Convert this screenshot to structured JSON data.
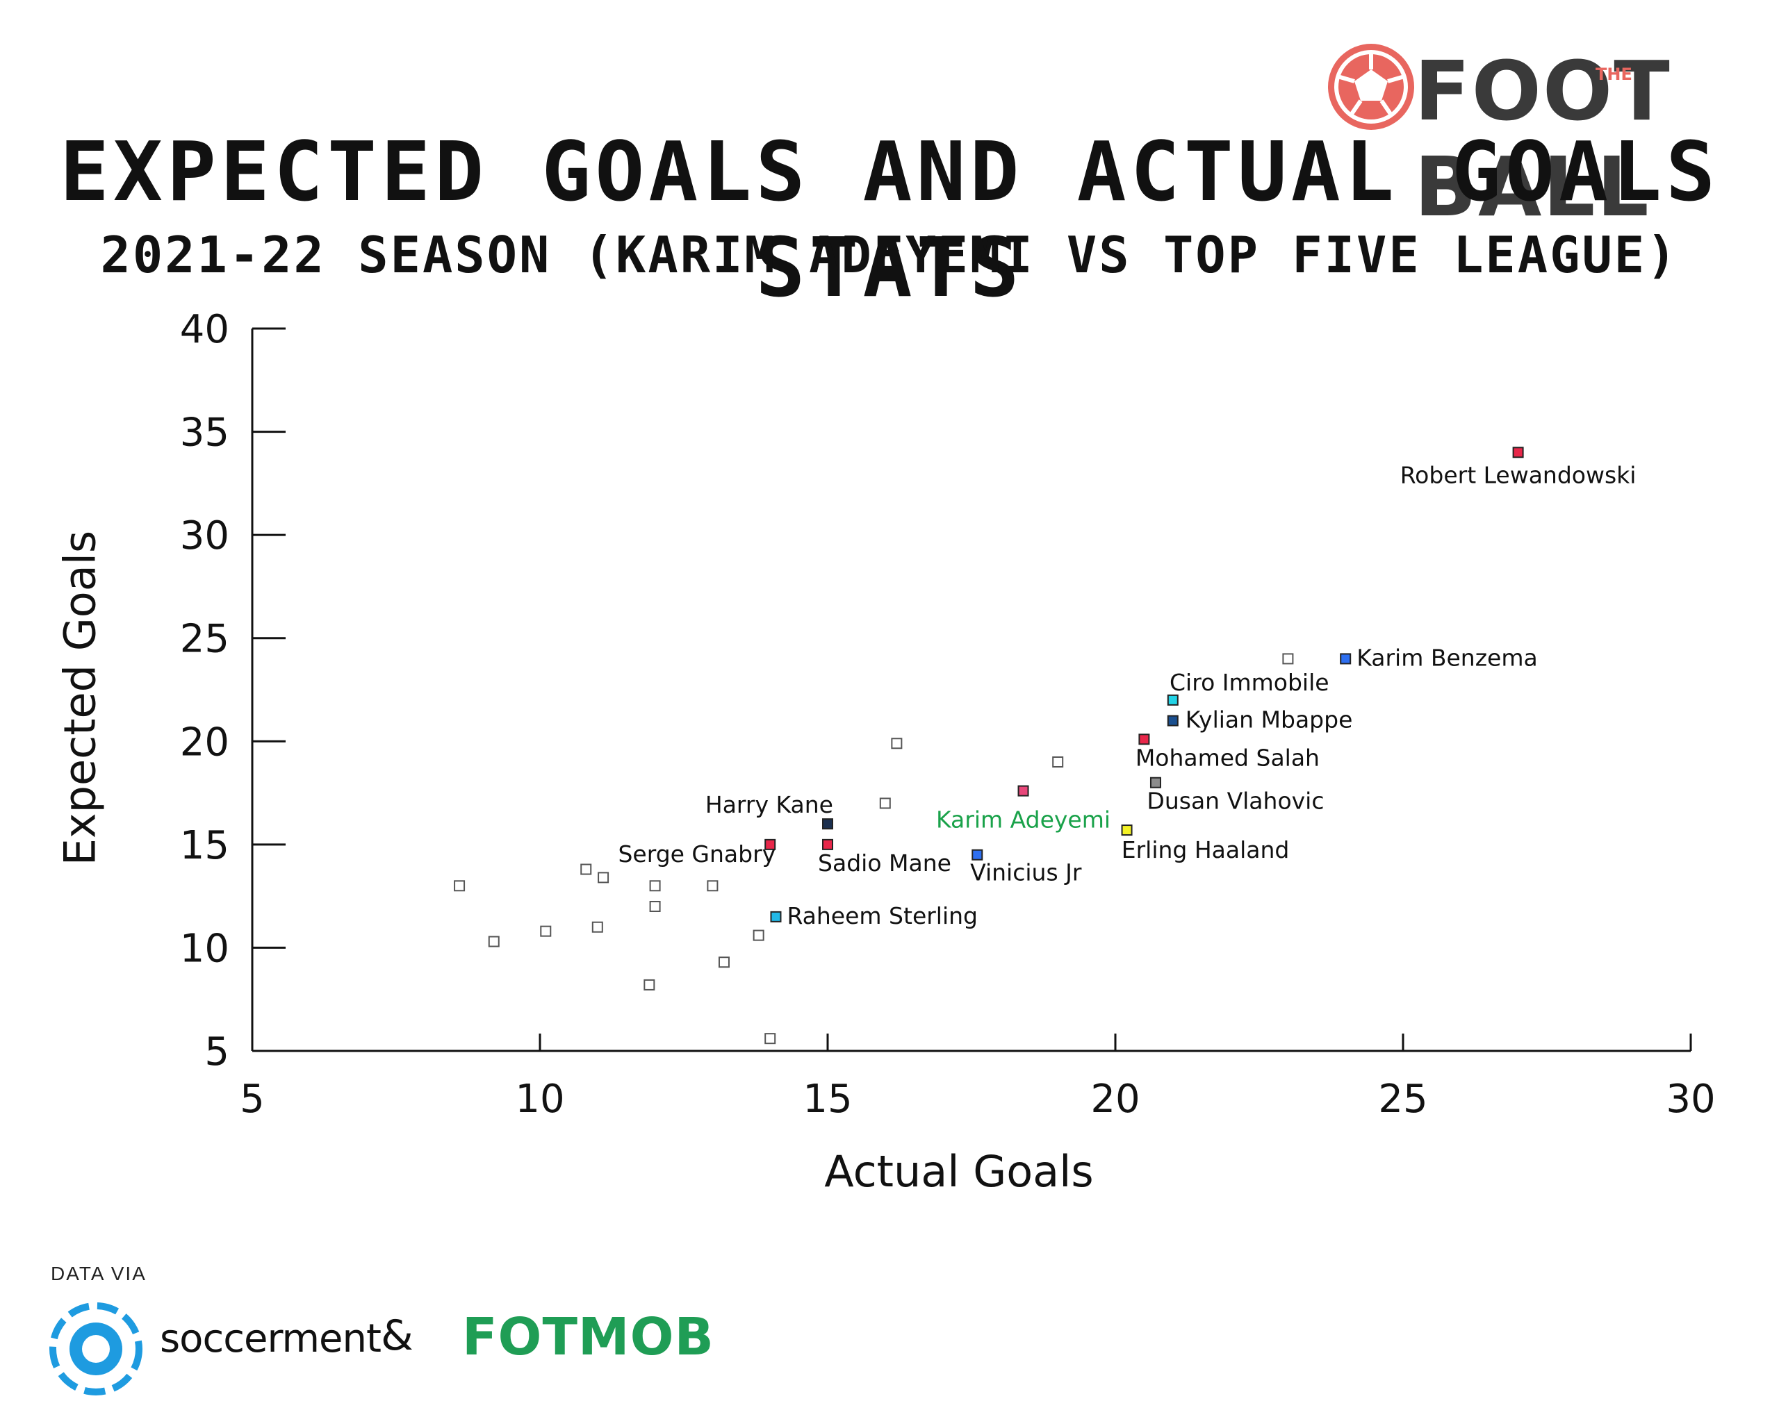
{
  "brand": {
    "name_left": "FOOT",
    "name_mid": "THE",
    "name_right": "BALL",
    "color": "#e8665f"
  },
  "chart_data": {
    "type": "scatter",
    "title": "EXPECTED GOALS AND ACTUAL GOALS STATS",
    "subtitle": "2021-22 SEASON (KARIM ADEYEMI VS TOP FIVE LEAGUE)",
    "xlabel": "Actual Goals",
    "ylabel": "Expected Goals",
    "xlim": [
      5,
      30
    ],
    "ylim": [
      5,
      40
    ],
    "xticks": [
      "5",
      "10",
      "15",
      "20",
      "25",
      "30"
    ],
    "yticks": [
      "5",
      "10",
      "15",
      "20",
      "25",
      "30",
      "35",
      "40"
    ],
    "grid": false,
    "points": [
      {
        "x": 27,
        "y": 34,
        "label": "Robert Lewandowski",
        "color": "#e8274a"
      },
      {
        "x": 24,
        "y": 24,
        "label": "Karim Benzema",
        "color": "#2e6ff0"
      },
      {
        "x": 21,
        "y": 22,
        "label": "Ciro Immobile",
        "color": "#22d3e6"
      },
      {
        "x": 21,
        "y": 21,
        "label": "Kylian Mbappe",
        "color": "#1a4f8f"
      },
      {
        "x": 20.5,
        "y": 20.1,
        "label": "Mohamed Salah",
        "color": "#e8274a"
      },
      {
        "x": 20.7,
        "y": 18,
        "label": "Dusan Vlahovic",
        "color": "#8c8c8c"
      },
      {
        "x": 20.2,
        "y": 15.7,
        "label": "Erling Haaland",
        "color": "#f4f226"
      },
      {
        "x": 18.4,
        "y": 17.6,
        "label": "Karim Adeyemi",
        "color": "#e8477a",
        "highlight": true
      },
      {
        "x": 17.6,
        "y": 14.5,
        "label": "Vinicius Jr",
        "color": "#2e6ff0"
      },
      {
        "x": 15,
        "y": 16,
        "label": "Harry Kane",
        "color": "#1b2f4f"
      },
      {
        "x": 15,
        "y": 15,
        "label": "Sadio Mane",
        "color": "#e8274a"
      },
      {
        "x": 14,
        "y": 15,
        "label": "Serge Gnabry",
        "color": "#e8274a"
      },
      {
        "x": 14.1,
        "y": 11.5,
        "label": "Raheem Sterling",
        "color": "#22b8e6"
      },
      {
        "x": 23,
        "y": 24
      },
      {
        "x": 16.2,
        "y": 19.9
      },
      {
        "x": 19,
        "y": 19
      },
      {
        "x": 16,
        "y": 17
      },
      {
        "x": 8.6,
        "y": 13
      },
      {
        "x": 9.2,
        "y": 10.3
      },
      {
        "x": 10.1,
        "y": 10.8
      },
      {
        "x": 10.8,
        "y": 13.8
      },
      {
        "x": 11.1,
        "y": 13.4
      },
      {
        "x": 11,
        "y": 11
      },
      {
        "x": 12,
        "y": 13
      },
      {
        "x": 12,
        "y": 12
      },
      {
        "x": 11.9,
        "y": 8.2
      },
      {
        "x": 13,
        "y": 13
      },
      {
        "x": 13.2,
        "y": 9.3
      },
      {
        "x": 13.8,
        "y": 10.6
      },
      {
        "x": 14,
        "y": 5.6
      }
    ]
  },
  "credits": {
    "label": "DATA VIA",
    "source1": "soccerment",
    "amp": "&",
    "source2": "FOTMOB",
    "source2_color": "#1f9d55",
    "source1_icon_color": "#1e9be0"
  },
  "colors": {
    "highlight_label": "#1aa24a",
    "axis": "#111111"
  }
}
